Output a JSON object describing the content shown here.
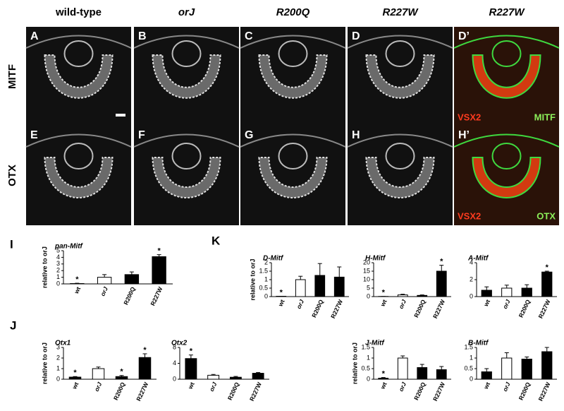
{
  "header": {
    "columns": [
      "wild-type",
      "orJ",
      "R200Q",
      "R227W",
      "R227W"
    ],
    "rows": [
      "MITF",
      "OTX"
    ]
  },
  "panels": [
    {
      "letter": "A"
    },
    {
      "letter": "B"
    },
    {
      "letter": "C"
    },
    {
      "letter": "D"
    },
    {
      "letter": "D’",
      "labels": [
        "VSX2",
        "MITF"
      ]
    },
    {
      "letter": "E"
    },
    {
      "letter": "F"
    },
    {
      "letter": "G"
    },
    {
      "letter": "H"
    },
    {
      "letter": "H’",
      "labels": [
        "VSX2",
        "OTX"
      ]
    }
  ],
  "figure_labels": [
    "I",
    "J",
    "K"
  ],
  "chart_data": [
    {
      "type": "bar",
      "title": "pan-Mitf",
      "ylabel": "relative to orJ",
      "categories": [
        "wt",
        "orJ",
        "R200Q",
        "R227W"
      ],
      "values": [
        0.05,
        1,
        1.4,
        4.1
      ],
      "errors": [
        0.05,
        0.4,
        0.4,
        0.3
      ],
      "colors": [
        "#000000",
        "#ffffff",
        "#000000",
        "#000000"
      ],
      "significance": [
        "*",
        null,
        null,
        "*"
      ],
      "ylim": [
        0,
        5
      ],
      "yticks": [
        0,
        1,
        2,
        3,
        4,
        5
      ]
    },
    {
      "type": "bar",
      "title": "D-Mitf",
      "ylabel": "relative to orJ",
      "categories": [
        "wt",
        "orJ",
        "R200Q",
        "R227W"
      ],
      "values": [
        0.02,
        1,
        1.25,
        1.15
      ],
      "errors": [
        0,
        0.2,
        0.7,
        0.6
      ],
      "colors": [
        "#000000",
        "#ffffff",
        "#000000",
        "#000000"
      ],
      "significance": [
        "*",
        null,
        null,
        null
      ],
      "ylim": [
        0,
        2
      ],
      "yticks": [
        0,
        0.5,
        1,
        1.5,
        2
      ]
    },
    {
      "type": "bar",
      "title": "H-Mitf",
      "categories": [
        "wt",
        "orJ",
        "R200Q",
        "R227W"
      ],
      "values": [
        0.1,
        1,
        0.7,
        15
      ],
      "errors": [
        0,
        0.4,
        0.3,
        3.5
      ],
      "colors": [
        "#000000",
        "#ffffff",
        "#000000",
        "#000000"
      ],
      "significance": [
        "*",
        null,
        null,
        "*"
      ],
      "ylim": [
        0,
        20
      ],
      "yticks": [
        0,
        5,
        10,
        15,
        20
      ]
    },
    {
      "type": "bar",
      "title": "A-Mitf",
      "categories": [
        "wt",
        "orJ",
        "R200Q",
        "R227W"
      ],
      "values": [
        0.75,
        1,
        1,
        2.9
      ],
      "errors": [
        0.4,
        0.35,
        0.4,
        0.1
      ],
      "colors": [
        "#000000",
        "#ffffff",
        "#000000",
        "#000000"
      ],
      "significance": [
        null,
        null,
        null,
        "*"
      ],
      "ylim": [
        0,
        4
      ],
      "yticks": [
        0,
        2,
        4
      ]
    },
    {
      "type": "bar",
      "title": "Otx1",
      "ylabel": "relative to orJ",
      "categories": [
        "wt",
        "orJ",
        "R200Q",
        "R227W"
      ],
      "values": [
        0.2,
        1,
        0.25,
        2.05
      ],
      "errors": [
        0.05,
        0.15,
        0.1,
        0.35
      ],
      "colors": [
        "#000000",
        "#ffffff",
        "#000000",
        "#000000"
      ],
      "significance": [
        "*",
        null,
        "*",
        "*"
      ],
      "ylim": [
        0,
        3
      ],
      "yticks": [
        0,
        1,
        2,
        3
      ]
    },
    {
      "type": "bar",
      "title": "Otx2",
      "categories": [
        "wt",
        "orJ",
        "R200Q",
        "R227W"
      ],
      "values": [
        5.2,
        1,
        0.5,
        1.5
      ],
      "errors": [
        0.9,
        0.2,
        0.2,
        0.2
      ],
      "colors": [
        "#000000",
        "#ffffff",
        "#000000",
        "#000000"
      ],
      "significance": [
        "*",
        null,
        null,
        null
      ],
      "ylim": [
        0,
        8
      ],
      "yticks": [
        0,
        4,
        8
      ]
    },
    {
      "type": "bar",
      "title": "J-Mitf",
      "ylabel": "relative to orJ",
      "categories": [
        "wt",
        "orJ",
        "R200Q",
        "R227W"
      ],
      "values": [
        0.05,
        1,
        0.55,
        0.45
      ],
      "errors": [
        0.03,
        0.1,
        0.15,
        0.15
      ],
      "colors": [
        "#000000",
        "#ffffff",
        "#000000",
        "#000000"
      ],
      "significance": [
        "*",
        null,
        null,
        null
      ],
      "ylim": [
        0,
        1.5
      ],
      "yticks": [
        0,
        0.5,
        1,
        1.5
      ]
    },
    {
      "type": "bar",
      "title": "B-Mitf",
      "categories": [
        "wt",
        "orJ",
        "R200Q",
        "R227W"
      ],
      "values": [
        0.35,
        1,
        0.95,
        1.3
      ],
      "errors": [
        0.15,
        0.25,
        0.1,
        0.2
      ],
      "colors": [
        "#000000",
        "#ffffff",
        "#000000",
        "#000000"
      ],
      "significance": [
        null,
        null,
        null,
        null
      ],
      "ylim": [
        0,
        1.5
      ],
      "yticks": [
        0,
        0.5,
        1,
        1.5
      ]
    }
  ]
}
